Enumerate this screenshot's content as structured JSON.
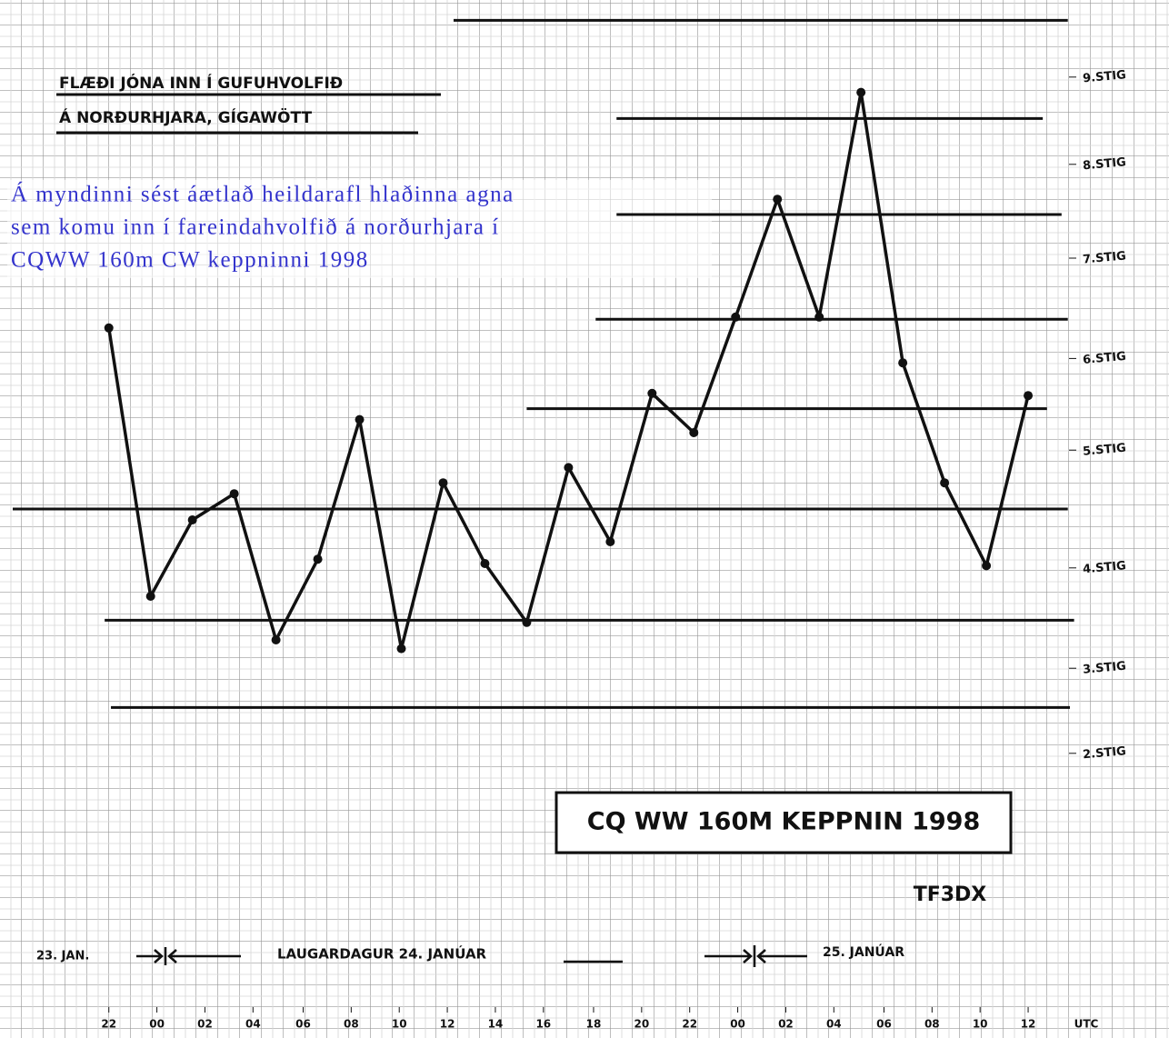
{
  "chart_data": {
    "type": "line",
    "title": [
      "FLÆÐI JÓNA INN Í GUFUHVOLFIÐ",
      "Á NORÐURHJARA, GÍGAWÖTT"
    ],
    "caption": [
      "Á myndinni sést áætlað heildarafl hlaðinna agna",
      "sem komu inn í fareindahvolfið á norðurhjara í",
      "CQWW 160m CW keppninni 1998"
    ],
    "box_label": "CQ WW 160M KEPPNIN 1998",
    "author": "TF3DX",
    "dates": [
      "23. JAN.",
      "LAUGARDAGUR 24. JANÚAR",
      "25. JANÚAR"
    ],
    "xlabel": "UTC",
    "x": [
      0,
      2,
      4,
      6,
      8,
      10,
      12,
      14,
      16,
      18,
      20,
      22,
      24,
      26,
      28,
      30,
      32,
      34,
      36,
      38,
      40,
      42,
      44
    ],
    "values": [
      30.8,
      18.5,
      22.0,
      23.2,
      16.5,
      20.2,
      26.6,
      16.1,
      23.7,
      20.0,
      17.3,
      24.4,
      21.0,
      27.8,
      26.0,
      31.3,
      36.7,
      31.3,
      41.6,
      29.2,
      23.7,
      19.9,
      27.7
    ],
    "color": "#111111",
    "xlim": [
      -4.6,
      47
    ],
    "ylim": [
      0,
      45
    ],
    "xticks": [
      {
        "value": 0,
        "label": "22"
      },
      {
        "value": 2.3,
        "label": "00"
      },
      {
        "value": 4.6,
        "label": "02"
      },
      {
        "value": 6.9,
        "label": "04"
      },
      {
        "value": 9.3,
        "label": "06"
      },
      {
        "value": 11.6,
        "label": "08"
      },
      {
        "value": 13.9,
        "label": "10"
      },
      {
        "value": 16.2,
        "label": "12"
      },
      {
        "value": 18.5,
        "label": "14"
      },
      {
        "value": 20.8,
        "label": "16"
      },
      {
        "value": 23.2,
        "label": "18"
      },
      {
        "value": 25.5,
        "label": "20"
      },
      {
        "value": 27.8,
        "label": "22"
      },
      {
        "value": 30.1,
        "label": "00"
      },
      {
        "value": 32.4,
        "label": "02"
      },
      {
        "value": 34.7,
        "label": "04"
      },
      {
        "value": 37.1,
        "label": "06"
      },
      {
        "value": 39.4,
        "label": "08"
      },
      {
        "value": 41.7,
        "label": "10"
      },
      {
        "value": 44,
        "label": "12"
      }
    ],
    "yticks": [
      {
        "value": 42.3,
        "label": "9.STIG"
      },
      {
        "value": 38.3,
        "label": "8.STIG"
      },
      {
        "value": 34.0,
        "label": "7.STIG"
      },
      {
        "value": 29.4,
        "label": "6.STIG"
      },
      {
        "value": 25.2,
        "label": "5.STIG"
      },
      {
        "value": 19.8,
        "label": "4.STIG"
      },
      {
        "value": 15.2,
        "label": "3.STIG"
      },
      {
        "value": 11.3,
        "label": "2.STIG"
      }
    ],
    "thresholds": [
      {
        "y": 44.9,
        "x": [
          16.5,
          45.9
        ]
      },
      {
        "y": 40.4,
        "x": [
          24.3,
          44.7
        ]
      },
      {
        "y": 36.0,
        "x": [
          24.3,
          45.6
        ]
      },
      {
        "y": 31.2,
        "x": [
          23.3,
          45.9
        ]
      },
      {
        "y": 27.1,
        "x": [
          20.0,
          44.9
        ]
      },
      {
        "y": 22.5,
        "x": [
          -4.6,
          45.9
        ]
      },
      {
        "y": 17.4,
        "x": [
          -0.2,
          46.2
        ]
      },
      {
        "y": 13.4,
        "x": [
          0.1,
          46.0
        ]
      }
    ]
  }
}
